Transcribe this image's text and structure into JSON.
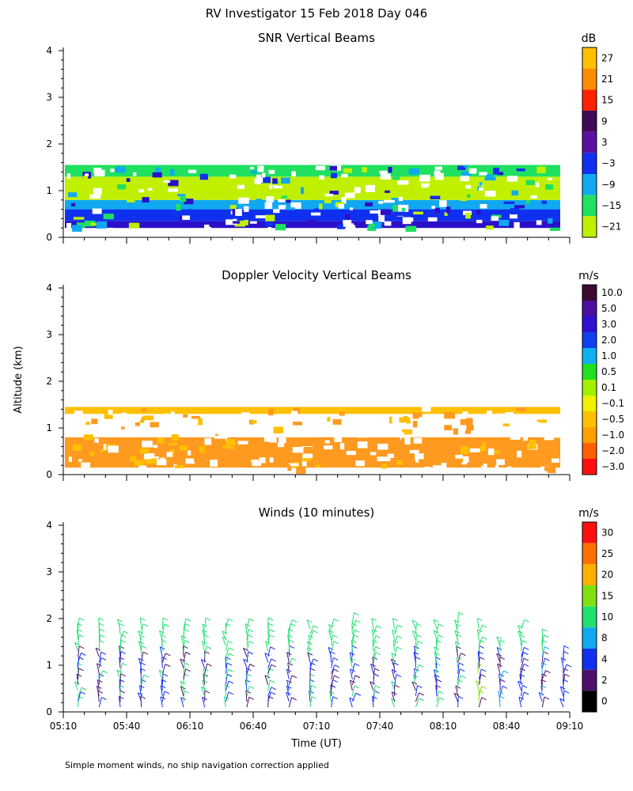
{
  "figure": {
    "title": "RV Investigator  15 Feb 2018 Day 046",
    "y_axis_label": "Altitude (km)",
    "x_axis_label": "Time (UT)",
    "footnote": "Simple moment winds, no ship navigation correction applied"
  },
  "chart_data": [
    {
      "type": "heatmap",
      "title": "SNR Vertical Beams",
      "ylim": [
        0,
        4
      ],
      "yticks": [
        "0",
        "1",
        "2",
        "3",
        "4"
      ],
      "xticks": [],
      "colorbar": {
        "unit": "dB",
        "labels": [
          "27",
          "21",
          "15",
          "9",
          "3",
          "−3",
          "−9",
          "−15",
          "−21"
        ],
        "colors": [
          "#FFC000",
          "#FF8C00",
          "#FF2200",
          "#3D0A55",
          "#5A10A0",
          "#1030F0",
          "#10A8F0",
          "#20E060",
          "#C0F000"
        ]
      },
      "layers": [
        {
          "name": "lowest",
          "ymin": 0.2,
          "ymax": 0.35,
          "color": "#2A10C8"
        },
        {
          "name": "low",
          "ymin": 0.35,
          "ymax": 0.6,
          "color": "#1030F0"
        },
        {
          "name": "low-mid",
          "ymin": 0.6,
          "ymax": 0.8,
          "color": "#10A8F0"
        },
        {
          "name": "mid",
          "ymin": 0.8,
          "ymax": 1.3,
          "color": "#C0F000"
        },
        {
          "name": "top",
          "ymin": 1.3,
          "ymax": 1.55,
          "color": "#20E060"
        }
      ]
    },
    {
      "type": "heatmap",
      "title": "Doppler Velocity Vertical Beams",
      "ylim": [
        0,
        4
      ],
      "yticks": [
        "0",
        "1",
        "2",
        "3",
        "4"
      ],
      "xticks": [],
      "colorbar": {
        "unit": "m/s",
        "labels": [
          "10.0",
          "5.0",
          "3.0",
          "2.0",
          "1.0",
          "0.5",
          "0.1",
          "−0.1",
          "−0.5",
          "−1.0",
          "−2.0",
          "−3.0"
        ],
        "colors": [
          "#3D0A30",
          "#4A10A0",
          "#3010D0",
          "#1040F0",
          "#10B0F0",
          "#20E020",
          "#A0F000",
          "#F0F000",
          "#FFC000",
          "#FFA000",
          "#FF6000",
          "#FF1010"
        ]
      },
      "layers": [
        {
          "name": "low",
          "ymin": 0.15,
          "ymax": 0.8,
          "color": "#FF9A20"
        },
        {
          "name": "upper",
          "ymin": 1.3,
          "ymax": 1.45,
          "color": "#FFC000"
        }
      ]
    },
    {
      "type": "scatter",
      "title": "Winds (10 minutes)",
      "ylim": [
        0,
        4
      ],
      "yticks": [
        "0",
        "1",
        "2",
        "3",
        "4"
      ],
      "xticks": [
        "05:10",
        "05:40",
        "06:10",
        "06:40",
        "07:10",
        "07:40",
        "08:10",
        "08:40",
        "09:10"
      ],
      "xlim": [
        "05:10",
        "09:10"
      ],
      "colorbar": {
        "unit": "m/s",
        "labels": [
          "30",
          "25",
          "20",
          "15",
          "10",
          "8",
          "4",
          "2",
          "0"
        ],
        "colors": [
          "#FF1010",
          "#FF7000",
          "#FFB000",
          "#80E010",
          "#20E070",
          "#10A8F0",
          "#1030F0",
          "#4A106A",
          "#000000"
        ]
      },
      "profile_times": [
        "05:17",
        "05:27",
        "05:37",
        "05:47",
        "05:57",
        "06:07",
        "06:17",
        "06:27",
        "06:37",
        "06:47",
        "06:57",
        "07:07",
        "07:17",
        "07:27",
        "07:37",
        "07:47",
        "07:57",
        "08:07",
        "08:17",
        "08:27",
        "08:37",
        "08:47",
        "08:57",
        "09:07"
      ],
      "max_height_km": [
        1.9,
        1.9,
        1.9,
        1.9,
        1.9,
        1.9,
        1.9,
        1.9,
        1.9,
        1.9,
        1.9,
        1.9,
        1.9,
        2.0,
        1.9,
        1.9,
        1.9,
        1.9,
        2.0,
        1.9,
        1.5,
        1.8,
        1.6,
        1.3
      ],
      "speed_ms": [
        12,
        11,
        12,
        11,
        10,
        10,
        11,
        10,
        10,
        11,
        11,
        10,
        11,
        10,
        12,
        11,
        12,
        12,
        14,
        15,
        8,
        9,
        8,
        7
      ]
    }
  ]
}
